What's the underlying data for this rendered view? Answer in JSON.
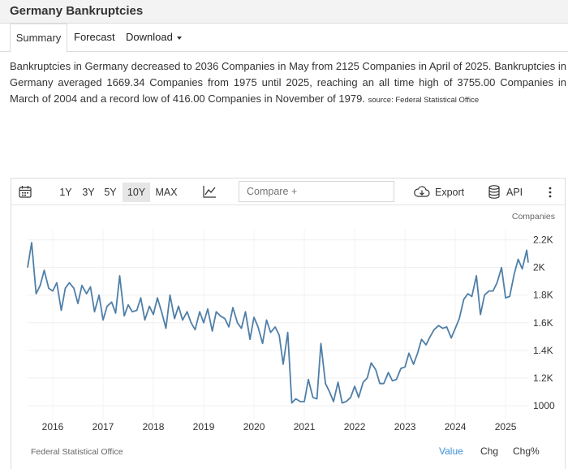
{
  "header": {
    "title": "Germany Bankruptcies"
  },
  "tabs": {
    "summary": "Summary",
    "forecast": "Forecast",
    "download": "Download"
  },
  "description": {
    "text": "Bankruptcies in Germany decreased to 2036 Companies in May from 2125 Companies in April of 2025. Bankruptcies in Germany averaged 1669.34 Companies from 1975 until 2025, reaching an all time high of 3755.00 Companies in March of 2004 and a record low of 416.00 Companies in November of 1979.",
    "source": "source: Federal Statistical Office"
  },
  "toolbar": {
    "range_1y": "1Y",
    "range_3y": "3Y",
    "range_5y": "5Y",
    "range_10y": "10Y",
    "range_max": "MAX",
    "compare_placeholder": "Compare +",
    "export_label": "Export",
    "api_label": "API"
  },
  "footer": {
    "source": "Federal Statistical Office",
    "mode_value": "Value",
    "mode_chg": "Chg",
    "mode_chgpct": "Chg%"
  },
  "colors": {
    "line": "#4f7fa8",
    "active_mode": "#3b8fd6"
  },
  "chart_data": {
    "type": "line",
    "title": "",
    "xlabel": "",
    "ylabel": "Companies",
    "y_ticks": [
      "1000",
      "1.2K",
      "1.4K",
      "1.6K",
      "1.8K",
      "2K",
      "2.2K"
    ],
    "y_tick_values": [
      1000,
      1200,
      1400,
      1600,
      1800,
      2000,
      2200
    ],
    "x_ticks": [
      "2016",
      "2017",
      "2018",
      "2019",
      "2020",
      "2021",
      "2022",
      "2023",
      "2024",
      "2025"
    ],
    "ylim": [
      900,
      2280
    ],
    "xlim": [
      2015.5,
      2025.45
    ],
    "grid": true,
    "series": [
      {
        "values": [
          [
            2015.5,
            2000
          ],
          [
            2015.58,
            2180
          ],
          [
            2015.67,
            1810
          ],
          [
            2015.75,
            1870
          ],
          [
            2015.83,
            1980
          ],
          [
            2015.92,
            1850
          ],
          [
            2016.0,
            1830
          ],
          [
            2016.08,
            1890
          ],
          [
            2016.17,
            1690
          ],
          [
            2016.25,
            1850
          ],
          [
            2016.33,
            1890
          ],
          [
            2016.42,
            1850
          ],
          [
            2016.5,
            1740
          ],
          [
            2016.58,
            1870
          ],
          [
            2016.67,
            1810
          ],
          [
            2016.75,
            1860
          ],
          [
            2016.83,
            1680
          ],
          [
            2016.92,
            1800
          ],
          [
            2017.0,
            1620
          ],
          [
            2017.08,
            1720
          ],
          [
            2017.17,
            1750
          ],
          [
            2017.25,
            1670
          ],
          [
            2017.33,
            1940
          ],
          [
            2017.42,
            1650
          ],
          [
            2017.5,
            1730
          ],
          [
            2017.58,
            1680
          ],
          [
            2017.67,
            1690
          ],
          [
            2017.75,
            1780
          ],
          [
            2017.83,
            1620
          ],
          [
            2017.92,
            1720
          ],
          [
            2018.0,
            1660
          ],
          [
            2018.08,
            1780
          ],
          [
            2018.17,
            1670
          ],
          [
            2018.25,
            1560
          ],
          [
            2018.33,
            1800
          ],
          [
            2018.42,
            1630
          ],
          [
            2018.5,
            1720
          ],
          [
            2018.58,
            1620
          ],
          [
            2018.67,
            1680
          ],
          [
            2018.75,
            1600
          ],
          [
            2018.83,
            1550
          ],
          [
            2018.92,
            1680
          ],
          [
            2019.0,
            1600
          ],
          [
            2019.08,
            1700
          ],
          [
            2019.17,
            1540
          ],
          [
            2019.25,
            1680
          ],
          [
            2019.33,
            1650
          ],
          [
            2019.42,
            1630
          ],
          [
            2019.5,
            1570
          ],
          [
            2019.58,
            1710
          ],
          [
            2019.67,
            1600
          ],
          [
            2019.75,
            1560
          ],
          [
            2019.83,
            1680
          ],
          [
            2019.92,
            1480
          ],
          [
            2020.0,
            1640
          ],
          [
            2020.08,
            1570
          ],
          [
            2020.17,
            1450
          ],
          [
            2020.25,
            1620
          ],
          [
            2020.33,
            1530
          ],
          [
            2020.42,
            1570
          ],
          [
            2020.5,
            1510
          ],
          [
            2020.58,
            1300
          ],
          [
            2020.67,
            1530
          ],
          [
            2020.75,
            1020
          ],
          [
            2020.83,
            1050
          ],
          [
            2020.92,
            1030
          ],
          [
            2021.0,
            1030
          ],
          [
            2021.08,
            1190
          ],
          [
            2021.17,
            1060
          ],
          [
            2021.25,
            1050
          ],
          [
            2021.33,
            1450
          ],
          [
            2021.42,
            1160
          ],
          [
            2021.5,
            1100
          ],
          [
            2021.58,
            1030
          ],
          [
            2021.67,
            1170
          ],
          [
            2021.75,
            1020
          ],
          [
            2021.83,
            1030
          ],
          [
            2021.92,
            1060
          ],
          [
            2022.0,
            1140
          ],
          [
            2022.08,
            1060
          ],
          [
            2022.17,
            1170
          ],
          [
            2022.25,
            1200
          ],
          [
            2022.33,
            1310
          ],
          [
            2022.42,
            1260
          ],
          [
            2022.5,
            1160
          ],
          [
            2022.58,
            1160
          ],
          [
            2022.67,
            1240
          ],
          [
            2022.75,
            1180
          ],
          [
            2022.83,
            1190
          ],
          [
            2022.92,
            1270
          ],
          [
            2023.0,
            1280
          ],
          [
            2023.08,
            1380
          ],
          [
            2023.17,
            1300
          ],
          [
            2023.25,
            1380
          ],
          [
            2023.33,
            1480
          ],
          [
            2023.42,
            1440
          ],
          [
            2023.5,
            1500
          ],
          [
            2023.58,
            1550
          ],
          [
            2023.67,
            1580
          ],
          [
            2023.75,
            1560
          ],
          [
            2023.83,
            1570
          ],
          [
            2023.92,
            1490
          ],
          [
            2024.0,
            1560
          ],
          [
            2024.08,
            1630
          ],
          [
            2024.17,
            1770
          ],
          [
            2024.25,
            1810
          ],
          [
            2024.33,
            1790
          ],
          [
            2024.42,
            1940
          ],
          [
            2024.5,
            1660
          ],
          [
            2024.58,
            1800
          ],
          [
            2024.67,
            1830
          ],
          [
            2024.75,
            1830
          ],
          [
            2024.83,
            1890
          ],
          [
            2024.92,
            2000
          ],
          [
            2025.0,
            1780
          ],
          [
            2025.08,
            1790
          ],
          [
            2025.17,
            1950
          ],
          [
            2025.25,
            2060
          ],
          [
            2025.33,
            1990
          ],
          [
            2025.42,
            2125
          ],
          [
            2025.45,
            2036
          ]
        ]
      }
    ]
  }
}
